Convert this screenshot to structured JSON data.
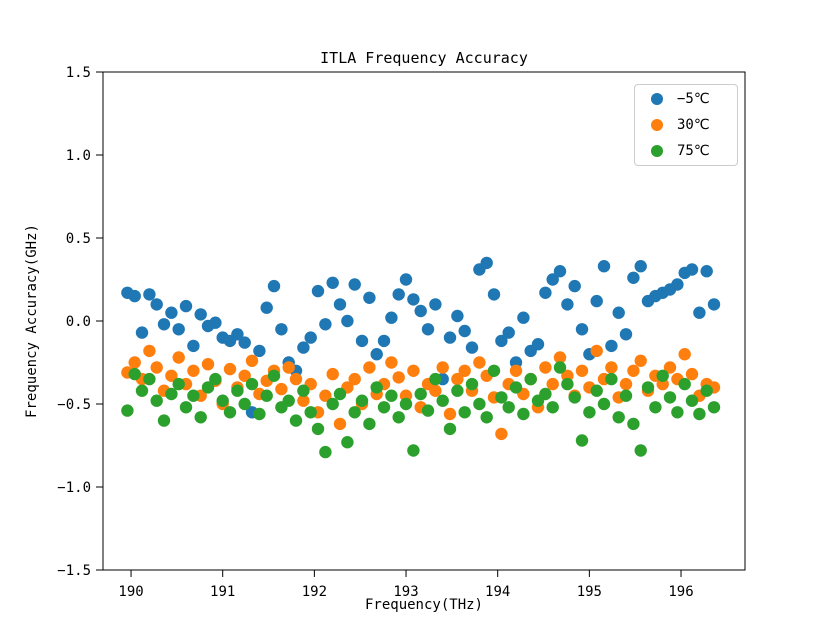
{
  "figure": {
    "title": "ITLA Frequency Accuracy",
    "xlabel": "Frequency(THz)",
    "ylabel": "Frequency Accuracy(GHz)"
  },
  "chart_data": {
    "type": "scatter",
    "title": "ITLA Frequency Accuracy",
    "xlabel": "Frequency(THz)",
    "ylabel": "Frequency Accuracy(GHz)",
    "xlim": [
      189.694,
      196.698
    ],
    "ylim": [
      -1.5,
      1.5
    ],
    "x_ticks": [
      190,
      191,
      192,
      193,
      194,
      195,
      196
    ],
    "x_tick_labels": [
      "190",
      "191",
      "192",
      "193",
      "194",
      "195",
      "196"
    ],
    "y_ticks": [
      1.5,
      1.0,
      0.5,
      0.0,
      -0.5,
      -1.0,
      -1.5
    ],
    "y_tick_labels": [
      "1.5",
      "1.0",
      "0.5",
      "0.0",
      "−0.5",
      "−1.0",
      "−1.5"
    ],
    "grid": false,
    "legend_position": "upper right",
    "marker": "circle",
    "marker_radius_px": 6.2,
    "x": [
      189.96,
      190.04,
      190.12,
      190.2,
      190.28,
      190.36,
      190.44,
      190.52,
      190.6,
      190.68,
      190.76,
      190.84,
      190.92,
      191.0,
      191.08,
      191.16,
      191.24,
      191.32,
      191.4,
      191.48,
      191.56,
      191.64,
      191.72,
      191.8,
      191.88,
      191.96,
      192.04,
      192.12,
      192.2,
      192.28,
      192.36,
      192.44,
      192.52,
      192.6,
      192.68,
      192.76,
      192.84,
      192.92,
      193.0,
      193.08,
      193.16,
      193.24,
      193.32,
      193.4,
      193.48,
      193.56,
      193.64,
      193.72,
      193.8,
      193.88,
      193.96,
      194.04,
      194.12,
      194.2,
      194.28,
      194.36,
      194.44,
      194.52,
      194.6,
      194.68,
      194.76,
      194.84,
      194.92,
      195.0,
      195.08,
      195.16,
      195.24,
      195.32,
      195.4,
      195.48,
      195.56,
      195.64,
      195.72,
      195.8,
      195.88,
      195.96,
      196.04,
      196.12,
      196.2,
      196.28,
      196.36
    ],
    "series": [
      {
        "name": "−5℃",
        "color": "#1f77b4",
        "values": [
          0.17,
          0.15,
          -0.07,
          0.16,
          0.1,
          -0.02,
          0.05,
          -0.05,
          0.09,
          -0.15,
          0.04,
          -0.03,
          -0.01,
          -0.1,
          -0.12,
          -0.08,
          -0.13,
          -0.55,
          -0.18,
          0.08,
          0.21,
          -0.05,
          -0.25,
          -0.3,
          -0.16,
          -0.1,
          0.18,
          -0.02,
          0.23,
          0.1,
          0.0,
          0.22,
          -0.12,
          0.14,
          -0.2,
          -0.12,
          0.02,
          0.16,
          0.25,
          0.13,
          0.06,
          -0.05,
          0.1,
          -0.35,
          -0.1,
          0.03,
          -0.06,
          -0.16,
          0.31,
          0.35,
          0.16,
          -0.12,
          -0.07,
          -0.25,
          0.02,
          -0.18,
          -0.14,
          0.17,
          0.25,
          0.3,
          0.1,
          0.21,
          -0.05,
          -0.2,
          0.12,
          0.33,
          -0.15,
          0.05,
          -0.08,
          0.26,
          0.33,
          0.12,
          0.15,
          0.17,
          0.19,
          0.22,
          0.29,
          0.31,
          0.05,
          0.3,
          0.1
        ]
      },
      {
        "name": "30℃",
        "color": "#ff7f0e",
        "values": [
          -0.31,
          -0.25,
          -0.35,
          -0.18,
          -0.28,
          -0.42,
          -0.33,
          -0.22,
          -0.38,
          -0.3,
          -0.45,
          -0.26,
          -0.36,
          -0.5,
          -0.29,
          -0.4,
          -0.33,
          -0.24,
          -0.44,
          -0.36,
          -0.3,
          -0.41,
          -0.28,
          -0.35,
          -0.48,
          -0.38,
          -0.55,
          -0.45,
          -0.32,
          -0.62,
          -0.4,
          -0.35,
          -0.5,
          -0.28,
          -0.44,
          -0.38,
          -0.25,
          -0.34,
          -0.45,
          -0.3,
          -0.52,
          -0.38,
          -0.42,
          -0.28,
          -0.56,
          -0.35,
          -0.3,
          -0.42,
          -0.25,
          -0.33,
          -0.46,
          -0.68,
          -0.38,
          -0.3,
          -0.44,
          -0.35,
          -0.52,
          -0.28,
          -0.38,
          -0.22,
          -0.33,
          -0.45,
          -0.3,
          -0.4,
          -0.18,
          -0.35,
          -0.28,
          -0.46,
          -0.38,
          -0.3,
          -0.24,
          -0.42,
          -0.33,
          -0.38,
          -0.28,
          -0.35,
          -0.2,
          -0.32,
          -0.45,
          -0.38,
          -0.4
        ]
      },
      {
        "name": "75℃",
        "color": "#2ca02c",
        "values": [
          -0.54,
          -0.32,
          -0.42,
          -0.35,
          -0.48,
          -0.6,
          -0.44,
          -0.38,
          -0.52,
          -0.45,
          -0.58,
          -0.4,
          -0.35,
          -0.48,
          -0.55,
          -0.42,
          -0.5,
          -0.38,
          -0.56,
          -0.45,
          -0.33,
          -0.52,
          -0.48,
          -0.6,
          -0.42,
          -0.55,
          -0.65,
          -0.79,
          -0.5,
          -0.44,
          -0.73,
          -0.55,
          -0.48,
          -0.62,
          -0.4,
          -0.52,
          -0.45,
          -0.58,
          -0.5,
          -0.78,
          -0.44,
          -0.54,
          -0.35,
          -0.48,
          -0.65,
          -0.42,
          -0.55,
          -0.38,
          -0.5,
          -0.58,
          -0.3,
          -0.46,
          -0.52,
          -0.4,
          -0.56,
          -0.35,
          -0.48,
          -0.44,
          -0.52,
          -0.28,
          -0.38,
          -0.46,
          -0.72,
          -0.55,
          -0.42,
          -0.5,
          -0.35,
          -0.58,
          -0.45,
          -0.62,
          -0.78,
          -0.4,
          -0.52,
          -0.33,
          -0.46,
          -0.55,
          -0.38,
          -0.48,
          -0.56,
          -0.42,
          -0.52
        ]
      }
    ]
  }
}
